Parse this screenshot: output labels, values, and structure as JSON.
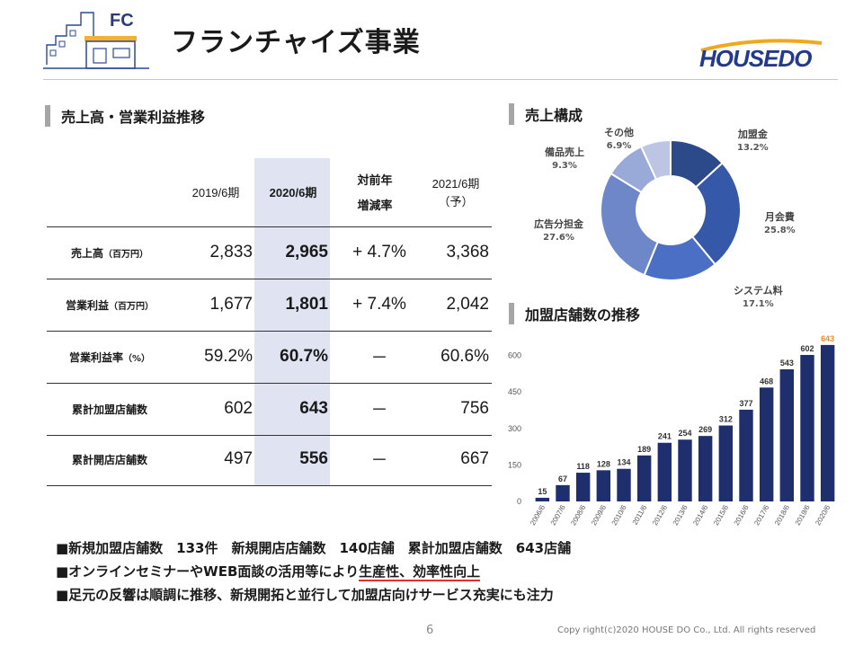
{
  "header": {
    "fc_label": "FC",
    "title": "フランチャイズ事業",
    "brand": "HOUSEDO",
    "brand_color": "#233a8c",
    "brand_accent": "#f2a81d"
  },
  "sections": {
    "sales_profit": "売上高・営業利益推移",
    "composition": "売上構成",
    "stores": "加盟店舗数の推移"
  },
  "table": {
    "columns": [
      "2019/6期",
      "2020/6期",
      "対前年",
      "増減率",
      "2021/6期",
      "（予）"
    ],
    "rows": [
      {
        "label": "売上高",
        "unit": "（百万円）",
        "v2019": "2,833",
        "v2020": "2,965",
        "change": "+ 4.7%",
        "v2021": "3,368"
      },
      {
        "label": "営業利益",
        "unit": "（百万円）",
        "v2019": "1,677",
        "v2020": "1,801",
        "change": "+ 7.4%",
        "v2021": "2,042"
      },
      {
        "label": "営業利益率",
        "unit": "（%）",
        "v2019": "59.2%",
        "v2020": "60.7%",
        "change": "－",
        "v2021": "60.6%"
      },
      {
        "label": "累計加盟店舗数",
        "unit": "",
        "v2019": "602",
        "v2020": "643",
        "change": "－",
        "v2021": "756"
      },
      {
        "label": "累計開店店舗数",
        "unit": "",
        "v2019": "497",
        "v2020": "556",
        "change": "－",
        "v2021": "667"
      }
    ],
    "highlight_color": "#dfe3f2"
  },
  "chart_data": [
    {
      "type": "pie",
      "title": "売上構成",
      "slices": [
        {
          "name": "加盟金",
          "value": 13.2,
          "label": "13.2%",
          "color": "#2c4a8a"
        },
        {
          "name": "月会費",
          "value": 25.8,
          "label": "25.8%",
          "color": "#3559a8"
        },
        {
          "name": "システム料",
          "value": 17.1,
          "label": "17.1%",
          "color": "#4a6fc4"
        },
        {
          "name": "広告分担金",
          "value": 27.6,
          "label": "27.6%",
          "color": "#6e87c9"
        },
        {
          "name": "備品売上",
          "value": 9.3,
          "label": "9.3%",
          "color": "#99aad9"
        },
        {
          "name": "その他",
          "value": 6.9,
          "label": "6.9%",
          "color": "#bcc6e4"
        }
      ]
    },
    {
      "type": "bar",
      "title": "加盟店舗数の推移",
      "categories": [
        "2006/6",
        "2007/6",
        "2008/6",
        "2009/6",
        "2010/6",
        "2011/6",
        "2012/6",
        "2013/6",
        "2014/6",
        "2015/6",
        "2016/6",
        "2017/6",
        "2018/6",
        "2019/6",
        "2020/6"
      ],
      "values": [
        15,
        67,
        118,
        128,
        134,
        189,
        241,
        254,
        269,
        312,
        377,
        468,
        543,
        602,
        643
      ],
      "yticks": [
        0,
        150,
        300,
        450,
        600
      ],
      "ylim": [
        0,
        650
      ],
      "bar_color": "#1f2f6e",
      "highlight_label_color": "#f08a2a",
      "grid": false
    }
  ],
  "bullets": [
    {
      "text": "■新規加盟店舗数　133件　新規開店店舗数　140店舗　累計加盟店舗数　643店舗"
    },
    {
      "prefix": "■オンラインセミナーやWEB面談の活用等により",
      "emph": "生産性、効率性向上",
      "suffix": ""
    },
    {
      "text": "■足元の反響は順調に推移、新規開拓と並行して加盟店向けサービス充実にも注力"
    }
  ],
  "footer": {
    "page": "6",
    "copyright": "Copy right(c)2020  HOUSE DO Co., Ltd. All rights reserved"
  }
}
